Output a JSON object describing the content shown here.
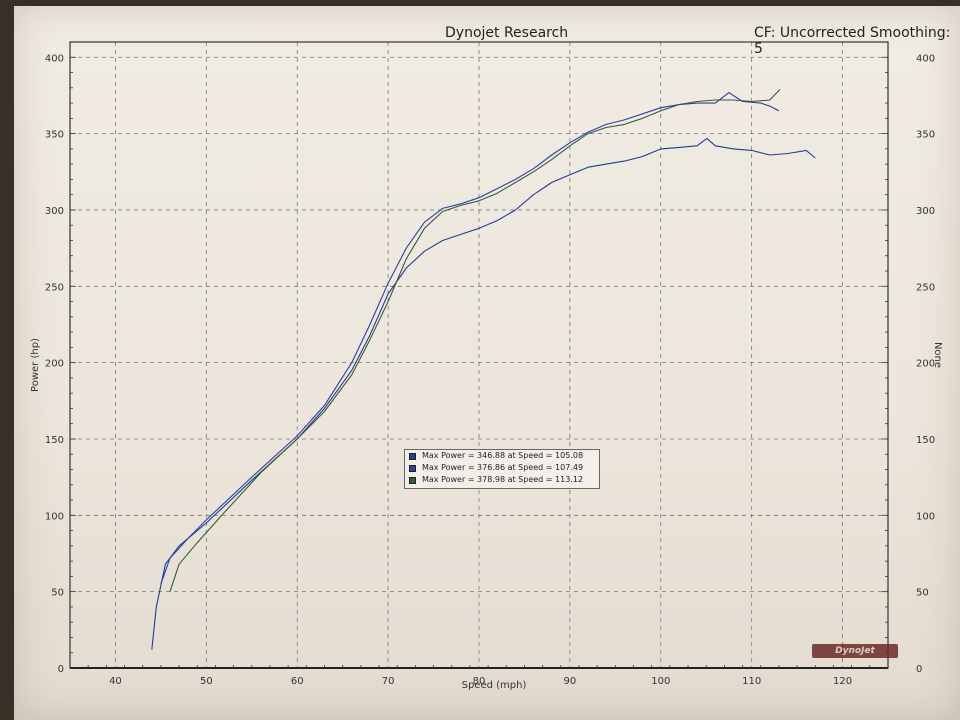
{
  "header": {
    "title": "Dynojet Research",
    "cf": "CF: Uncorrected Smoothing: 5"
  },
  "chart_data": {
    "type": "line",
    "xlabel": "Speed (mph)",
    "ylabel": "Power (hp)",
    "y2label": "None",
    "xlim": [
      35,
      125
    ],
    "ylim": [
      0,
      410
    ],
    "y2lim": [
      0,
      410
    ],
    "x_ticks": [
      40,
      50,
      60,
      70,
      80,
      90,
      100,
      110,
      120
    ],
    "y_ticks": [
      0,
      50,
      100,
      150,
      200,
      250,
      300,
      350,
      400
    ],
    "y2_ticks": [
      0,
      50,
      100,
      150,
      200,
      250,
      300,
      350,
      400
    ],
    "grid": true,
    "series": [
      {
        "name": "Max Power = 346.88 at Speed = 105.08",
        "color": "#1f3f8f",
        "x": [
          44.0,
          44.5,
          45.5,
          47,
          50,
          55,
          60,
          63,
          66,
          68,
          70,
          72,
          74,
          76,
          78,
          80,
          82,
          84,
          86,
          88,
          90,
          92,
          94,
          96,
          98,
          100,
          102,
          104,
          105.08,
          106,
          108,
          110,
          112,
          114,
          116,
          117
        ],
        "y": [
          12,
          40,
          68,
          80,
          95,
          123,
          150,
          170,
          195,
          218,
          245,
          262,
          273,
          280,
          284,
          288,
          293,
          300,
          310,
          318,
          323,
          328,
          330,
          332,
          335,
          340,
          341,
          342,
          346.88,
          342,
          340,
          339,
          336,
          337,
          339,
          334
        ]
      },
      {
        "name": "Max Power = 376.86 at Speed = 107.49",
        "color": "#2f3f9f",
        "x": [
          45.0,
          46,
          48,
          50,
          55,
          60,
          63,
          66,
          68,
          70,
          72,
          74,
          76,
          78,
          80,
          82,
          84,
          86,
          88,
          90,
          92,
          94,
          96,
          98,
          100,
          102,
          104,
          106,
          107.49,
          109,
          111,
          112,
          113
        ],
        "y": [
          55,
          72,
          85,
          97,
          125,
          152,
          172,
          200,
          225,
          252,
          275,
          292,
          301,
          304,
          308,
          314,
          320,
          327,
          336,
          344,
          351,
          356,
          359,
          363,
          367,
          369,
          370,
          370,
          376.86,
          371,
          370,
          368,
          365
        ]
      },
      {
        "name": "Max Power = 378.98 at Speed = 113.12",
        "color": "#3a5a3a",
        "x": [
          46.0,
          47,
          49,
          52,
          56,
          60,
          63,
          66,
          68,
          70,
          72,
          74,
          76,
          78,
          80,
          82,
          84,
          86,
          88,
          90,
          92,
          94,
          96,
          98,
          100,
          102,
          104,
          106,
          108,
          110,
          112,
          113.12
        ],
        "y": [
          50,
          68,
          82,
          102,
          128,
          150,
          168,
          192,
          215,
          240,
          268,
          288,
          299,
          303,
          306,
          311,
          318,
          325,
          333,
          342,
          350,
          354,
          356,
          360,
          365,
          369,
          371,
          372,
          372,
          371,
          372,
          378.98
        ]
      }
    ]
  }
}
